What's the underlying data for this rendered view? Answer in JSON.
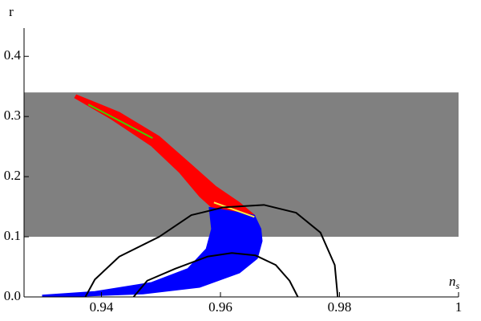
{
  "chart_data": {
    "type": "region",
    "ylabel": "r",
    "xlabel": "n",
    "xlabel_subscript": "s",
    "xlim": [
      0.927,
      1.0
    ],
    "ylim": [
      0,
      0.447
    ],
    "xticks": [
      0.94,
      0.96,
      0.98,
      1
    ],
    "yticks": [
      {
        "value": 0,
        "label": "0.0"
      },
      {
        "value": 0.1,
        "label": "0.1"
      },
      {
        "value": 0.2,
        "label": "0.2"
      },
      {
        "value": 0.3,
        "label": "0.3"
      },
      {
        "value": 0.4,
        "label": "0.4"
      }
    ],
    "band": {
      "color": "#808080",
      "y": [
        0.1,
        0.34
      ]
    },
    "regions": [
      {
        "color": "#ff0000",
        "x": [
          0.9358,
          0.943,
          0.9497,
          0.9551,
          0.9592,
          0.9632,
          0.9657,
          0.9585,
          0.9565,
          0.9531,
          0.9484,
          0.9416,
          0.9355
        ],
        "y": [
          0.336,
          0.307,
          0.267,
          0.22,
          0.184,
          0.157,
          0.136,
          0.149,
          0.167,
          0.207,
          0.251,
          0.296,
          0.331
        ]
      },
      {
        "color": "#0000ff",
        "x": [
          0.9657,
          0.9668,
          0.967,
          0.9662,
          0.9632,
          0.9565,
          0.947,
          0.9362,
          0.9301,
          0.9301,
          0.9389,
          0.9484,
          0.9545,
          0.9576,
          0.9585,
          0.9581
        ],
        "y": [
          0.136,
          0.113,
          0.093,
          0.064,
          0.04,
          0.016,
          0.005,
          0.001,
          0,
          0.003,
          0.009,
          0.024,
          0.047,
          0.08,
          0.113,
          0.149
        ]
      }
    ],
    "lines": [
      {
        "color": "#44cc00",
        "width": 2,
        "x": [
          0.9378,
          0.9486
        ],
        "y": [
          0.32,
          0.264
        ]
      },
      {
        "color": "#ffee44",
        "width": 2,
        "x": [
          0.9589,
          0.9657
        ],
        "y": [
          0.157,
          0.133
        ]
      },
      {
        "color": "#000000",
        "width": 2,
        "x": [
          0.9373,
          0.9389,
          0.943,
          0.9497,
          0.9551,
          0.9605,
          0.9673,
          0.9727,
          0.9768,
          0.9792,
          0.9797
        ],
        "y": [
          0,
          0.029,
          0.067,
          0.1,
          0.136,
          0.149,
          0.153,
          0.14,
          0.107,
          0.053,
          0
        ]
      },
      {
        "color": "#000000",
        "width": 2,
        "x": [
          0.9454,
          0.9477,
          0.9524,
          0.9578,
          0.9619,
          0.9659,
          0.9693,
          0.9716,
          0.973
        ],
        "y": [
          0,
          0.027,
          0.047,
          0.067,
          0.073,
          0.069,
          0.053,
          0.027,
          0
        ]
      }
    ]
  }
}
